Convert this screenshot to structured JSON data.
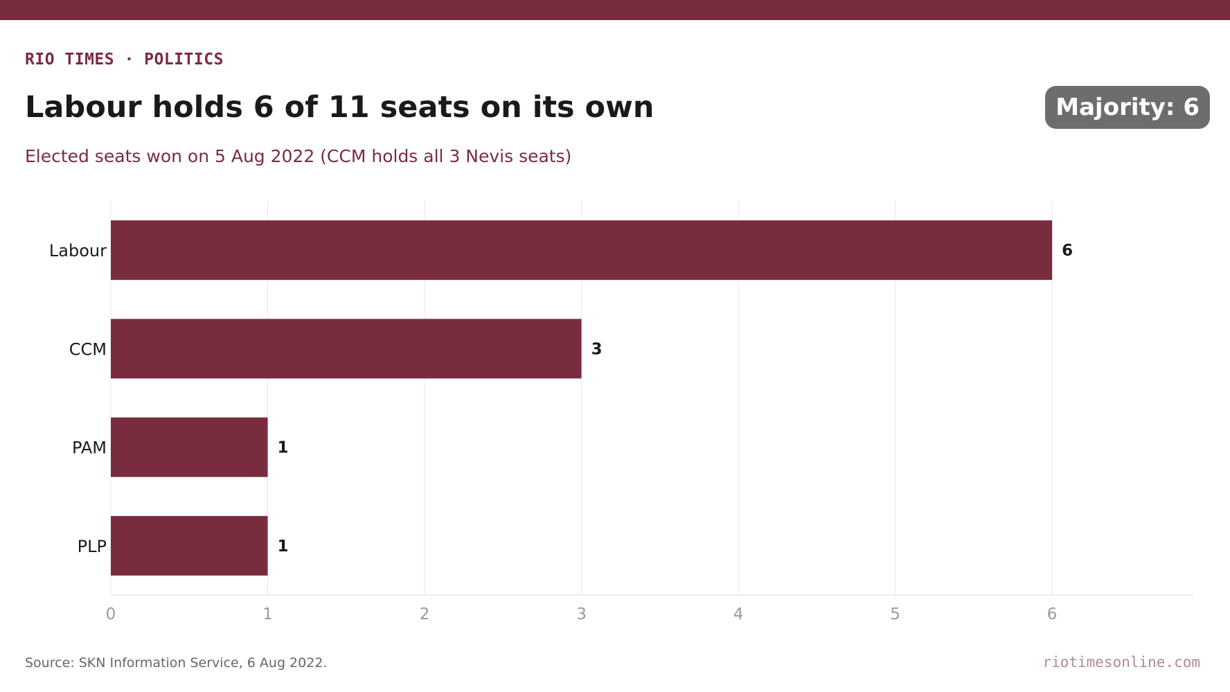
{
  "header": {
    "kicker": "RIO TIMES · POLITICS",
    "title": "Labour holds 6 of 11 seats on its own",
    "subtitle": "Elected seats won on 5 Aug 2022 (CCM holds all 3 Nevis seats)",
    "badge": "Majority: 6"
  },
  "footer": {
    "source": "Source: SKN Information Service, 6 Aug 2022.",
    "site": "riotimesonline.com"
  },
  "colors": {
    "accent": "#7a2c3f",
    "badge": "#6d6d6d",
    "grid": "#e8e8e8",
    "tick": "#9a9a9a"
  },
  "chart_data": {
    "type": "bar",
    "orientation": "horizontal",
    "categories": [
      "Labour",
      "CCM",
      "PAM",
      "PLP"
    ],
    "values": [
      6,
      3,
      1,
      1
    ],
    "data_labels": [
      "6",
      "3",
      "1",
      "1"
    ],
    "xlim": [
      0,
      6.9
    ],
    "xticks": [
      0,
      1,
      2,
      3,
      4,
      5,
      6
    ],
    "xtick_labels": [
      "0",
      "1",
      "2",
      "3",
      "4",
      "5",
      "6"
    ],
    "grid": "vertical",
    "legend": "none"
  }
}
